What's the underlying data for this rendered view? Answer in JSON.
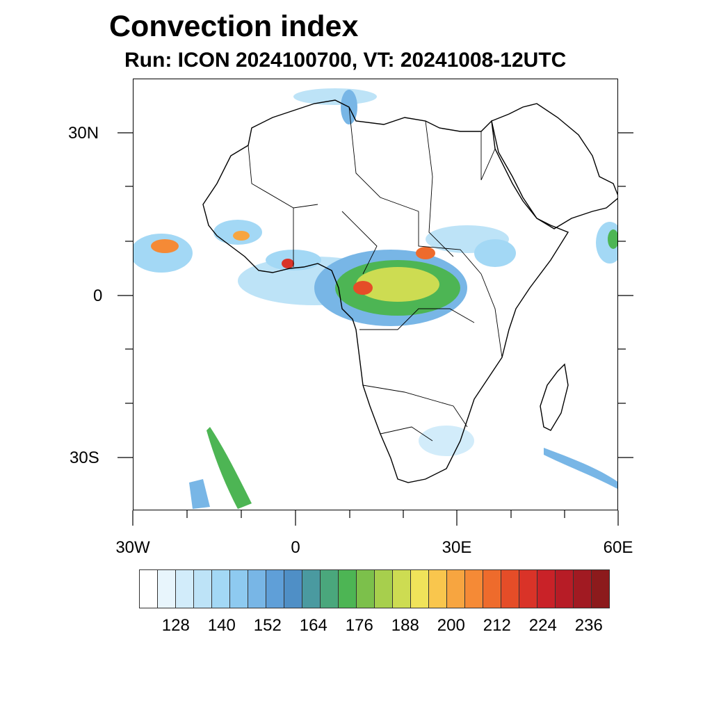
{
  "header": {
    "title": "Convection index",
    "subtitle": "Run: ICON 2024100700,  VT: 20241008-12UTC"
  },
  "map": {
    "extent": {
      "lon_min": -30,
      "lon_max": 60,
      "lat_min": -40,
      "lat_max": 40
    },
    "lat_labels": [
      {
        "lat": 30,
        "text": "30N"
      },
      {
        "lat": 0,
        "text": "0"
      },
      {
        "lat": -30,
        "text": "30S"
      }
    ],
    "lon_labels": [
      {
        "lon": -30,
        "text": "30W"
      },
      {
        "lon": 0,
        "text": "0"
      },
      {
        "lon": 30,
        "text": "30E"
      },
      {
        "lon": 60,
        "text": "60E"
      }
    ],
    "colors": {
      "land_outline": "#000000",
      "ocean": "#ffffff"
    }
  },
  "legend": {
    "colors": [
      "#ffffff",
      "#e8f5fc",
      "#d2ecfa",
      "#bde3f7",
      "#a3d8f5",
      "#8ecaf0",
      "#78b6e6",
      "#5f9fd8",
      "#4f8fc6",
      "#4a9aa0",
      "#4aa77c",
      "#4db554",
      "#7cc04b",
      "#a7cf4d",
      "#cddc52",
      "#f0e35a",
      "#f9c64d",
      "#f7a540",
      "#f58a36",
      "#ee6b2c",
      "#e54d28",
      "#d93328",
      "#c92228",
      "#b71c26",
      "#a11a22",
      "#8c1a1c"
    ],
    "labels": [
      "128",
      "140",
      "152",
      "164",
      "176",
      "188",
      "200",
      "212",
      "224",
      "236"
    ]
  }
}
